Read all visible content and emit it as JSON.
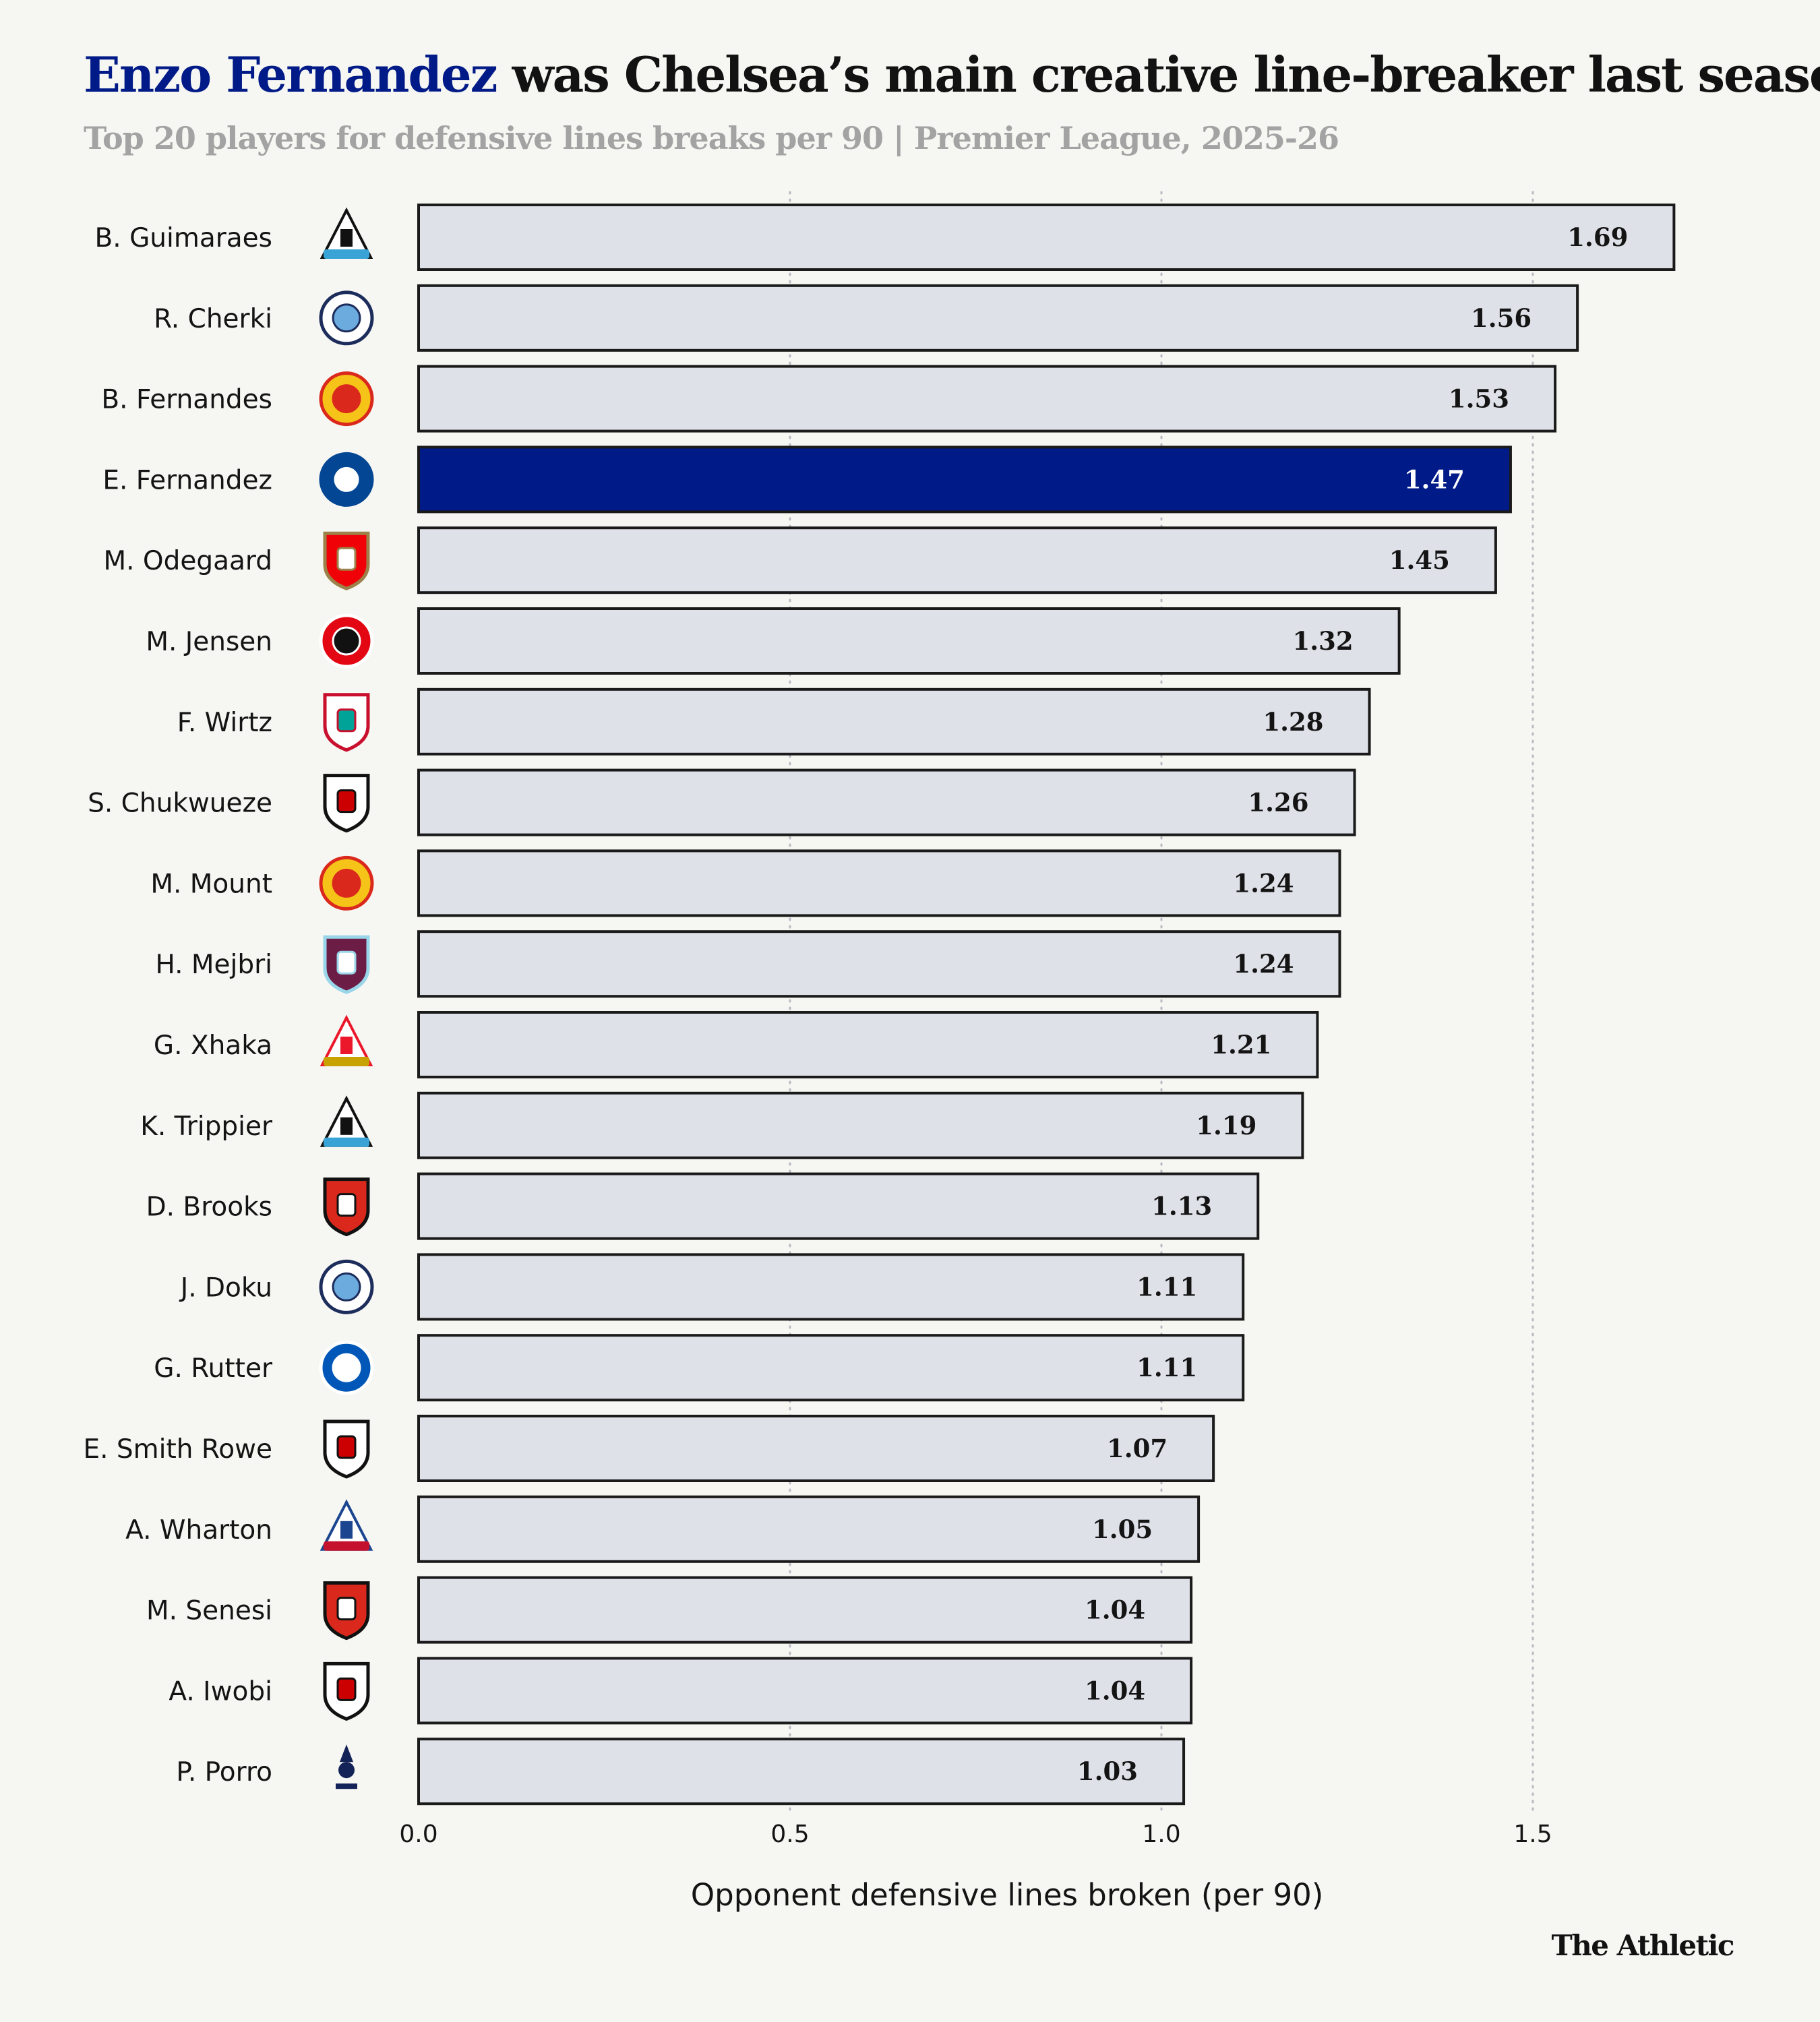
{
  "header": {
    "title_highlight": "Enzo Fernandez",
    "title_rest": " was Chelsea’s main creative line-breaker last season",
    "subtitle": "Top 20 players for defensive lines breaks per 90 | Premier League, 2025-26"
  },
  "brand": "The Athletic",
  "colors": {
    "highlight": "#001a87",
    "bar_fill": "#dfe1e8",
    "bar_stroke": "#1a1a1a",
    "grid": "#b9b9c2",
    "background": "#f6f6f2"
  },
  "chart_data": {
    "type": "bar",
    "orientation": "horizontal",
    "title": "Enzo Fernandez was Chelsea’s main creative line-breaker last season",
    "subtitle": "Top 20 players for defensive lines breaks per 90 | Premier League, 2025-26",
    "xlabel": "Opponent defensive lines broken (per 90)",
    "ylabel": "",
    "xlim": [
      0,
      1.69
    ],
    "xticks": [
      "0.0",
      "0.5",
      "1.0",
      "1.5"
    ],
    "xtick_values": [
      0,
      0.5,
      1.0,
      1.5
    ],
    "grid": "vertical dotted",
    "highlight_category": "E. Fernandez",
    "categories": [
      "B. Guimaraes",
      "R. Cherki",
      "B. Fernandes",
      "E. Fernandez",
      "M. Odegaard",
      "M. Jensen",
      "F. Wirtz",
      "S. Chukwueze",
      "M. Mount",
      "H. Mejbri",
      "G. Xhaka",
      "K. Trippier",
      "D. Brooks",
      "J. Doku",
      "G. Rutter",
      "E. Smith Rowe",
      "A. Wharton",
      "M. Senesi",
      "A. Iwobi",
      "P. Porro"
    ],
    "values": [
      1.69,
      1.56,
      1.53,
      1.47,
      1.45,
      1.32,
      1.28,
      1.26,
      1.24,
      1.24,
      1.21,
      1.19,
      1.13,
      1.11,
      1.11,
      1.07,
      1.05,
      1.04,
      1.04,
      1.03
    ],
    "value_labels": [
      "1.69",
      "1.56",
      "1.53",
      "1.47",
      "1.45",
      "1.32",
      "1.28",
      "1.26",
      "1.24",
      "1.24",
      "1.21",
      "1.19",
      "1.13",
      "1.11",
      "1.11",
      "1.07",
      "1.05",
      "1.04",
      "1.04",
      "1.03"
    ],
    "club_icons": [
      "newcastle-crest-icon",
      "man-city-crest-icon",
      "man-united-crest-icon",
      "chelsea-crest-icon",
      "arsenal-crest-icon",
      "brentford-crest-icon",
      "liverpool-crest-icon",
      "fulham-crest-icon",
      "man-united-crest-icon",
      "burnley-crest-icon",
      "sunderland-crest-icon",
      "newcastle-crest-icon",
      "bournemouth-crest-icon",
      "man-city-crest-icon",
      "brighton-crest-icon",
      "fulham-crest-icon",
      "crystal-palace-crest-icon",
      "bournemouth-crest-icon",
      "fulham-crest-icon",
      "tottenham-crest-icon"
    ]
  }
}
